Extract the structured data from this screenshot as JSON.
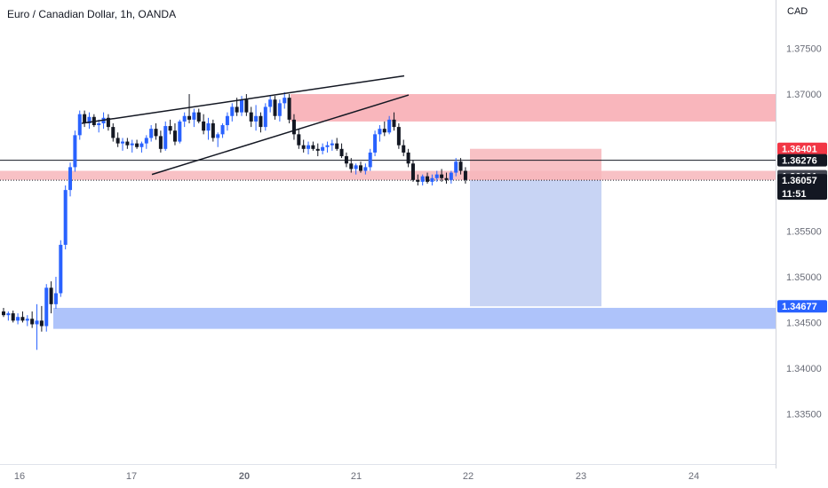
{
  "header": {
    "symbol_title": "Euro / Canadian Dollar, 1h, OANDA",
    "currency": "CAD"
  },
  "price_axis": {
    "ticks": [
      "1.37500",
      "1.37000",
      "1.35500",
      "1.35000",
      "1.34500",
      "1.34000",
      "1.33500"
    ]
  },
  "time_axis": {
    "labels": [
      {
        "text": "16",
        "bold": false
      },
      {
        "text": "17",
        "bold": false
      },
      {
        "text": "20",
        "bold": true
      },
      {
        "text": "21",
        "bold": false
      },
      {
        "text": "22",
        "bold": false
      },
      {
        "text": "23",
        "bold": false
      },
      {
        "text": "24",
        "bold": false
      }
    ]
  },
  "price_tags": {
    "stop": {
      "value": "1.36401",
      "color": "#f23645"
    },
    "entry": {
      "value": "1.36276",
      "color": "#131722"
    },
    "zone": {
      "value": "1.36101",
      "color": "#434651"
    },
    "last": {
      "value": "1.36057",
      "color": "#131722",
      "countdown": "11:51"
    },
    "target": {
      "value": "1.34677",
      "color": "#2962ff"
    }
  },
  "colors": {
    "bull": "#2962ff",
    "bear": "#131722",
    "supply_zone": "#f7a4ab",
    "demand_zone": "#a5bcf9",
    "stop_region": "#f7b6bb",
    "target_region": "#c5d2f3"
  },
  "chart_data": {
    "type": "candlestick",
    "instrument": "EUR/CAD",
    "timeframe": "1h",
    "candles_ohlc": [
      [
        1.3462,
        1.3466,
        1.3456,
        1.3458
      ],
      [
        1.3458,
        1.3462,
        1.3452,
        1.346
      ],
      [
        1.346,
        1.3463,
        1.345,
        1.3452
      ],
      [
        1.3452,
        1.346,
        1.3448,
        1.3456
      ],
      [
        1.3456,
        1.3462,
        1.345,
        1.3452
      ],
      [
        1.3452,
        1.3458,
        1.3446,
        1.3454
      ],
      [
        1.3454,
        1.3462,
        1.3444,
        1.3448
      ],
      [
        1.3448,
        1.347,
        1.342,
        1.3452
      ],
      [
        1.3452,
        1.3468,
        1.344,
        1.3446
      ],
      [
        1.3446,
        1.3492,
        1.344,
        1.3488
      ],
      [
        1.3488,
        1.3495,
        1.346,
        1.347
      ],
      [
        1.347,
        1.35,
        1.3465,
        1.3482
      ],
      [
        1.3482,
        1.354,
        1.3478,
        1.3535
      ],
      [
        1.3535,
        1.36,
        1.353,
        1.3595
      ],
      [
        1.3595,
        1.3625,
        1.3588,
        1.362
      ],
      [
        1.362,
        1.366,
        1.3615,
        1.3655
      ],
      [
        1.3655,
        1.3682,
        1.365,
        1.3678
      ],
      [
        1.3678,
        1.3682,
        1.3664,
        1.3668
      ],
      [
        1.3668,
        1.368,
        1.3662,
        1.3675
      ],
      [
        1.3675,
        1.3678,
        1.3664,
        1.3666
      ],
      [
        1.3666,
        1.3672,
        1.3658,
        1.3668
      ],
      [
        1.3668,
        1.368,
        1.3662,
        1.3674
      ],
      [
        1.3674,
        1.3678,
        1.366,
        1.3664
      ],
      [
        1.3664,
        1.3668,
        1.3648,
        1.3652
      ],
      [
        1.3652,
        1.3658,
        1.3642,
        1.3646
      ],
      [
        1.3646,
        1.3652,
        1.3638,
        1.3648
      ],
      [
        1.3648,
        1.3652,
        1.364,
        1.3644
      ],
      [
        1.3644,
        1.365,
        1.3636,
        1.3646
      ],
      [
        1.3646,
        1.365,
        1.364,
        1.3642
      ],
      [
        1.3642,
        1.3648,
        1.3636,
        1.3646
      ],
      [
        1.3646,
        1.3655,
        1.364,
        1.3652
      ],
      [
        1.3652,
        1.3666,
        1.3648,
        1.3662
      ],
      [
        1.3662,
        1.3668,
        1.365,
        1.3654
      ],
      [
        1.3654,
        1.366,
        1.3636,
        1.364
      ],
      [
        1.364,
        1.367,
        1.3638,
        1.3665
      ],
      [
        1.3665,
        1.3672,
        1.3656,
        1.366
      ],
      [
        1.366,
        1.3668,
        1.3644,
        1.3648
      ],
      [
        1.3648,
        1.3672,
        1.3646,
        1.367
      ],
      [
        1.367,
        1.368,
        1.3664,
        1.3676
      ],
      [
        1.3676,
        1.37,
        1.3668,
        1.3672
      ],
      [
        1.3672,
        1.3684,
        1.3664,
        1.368
      ],
      [
        1.368,
        1.3684,
        1.3668,
        1.367
      ],
      [
        1.367,
        1.3678,
        1.3656,
        1.366
      ],
      [
        1.366,
        1.3674,
        1.365,
        1.3668
      ],
      [
        1.3668,
        1.3672,
        1.3648,
        1.3652
      ],
      [
        1.3652,
        1.3658,
        1.3642,
        1.3656
      ],
      [
        1.3656,
        1.3668,
        1.3652,
        1.3666
      ],
      [
        1.3666,
        1.368,
        1.366,
        1.3676
      ],
      [
        1.3676,
        1.369,
        1.367,
        1.3686
      ],
      [
        1.3686,
        1.3696,
        1.3676,
        1.368
      ],
      [
        1.368,
        1.3698,
        1.3676,
        1.3694
      ],
      [
        1.3694,
        1.37,
        1.3676,
        1.368
      ],
      [
        1.368,
        1.3686,
        1.3664,
        1.367
      ],
      [
        1.367,
        1.3688,
        1.366,
        1.3676
      ],
      [
        1.3676,
        1.368,
        1.3658,
        1.3664
      ],
      [
        1.3664,
        1.369,
        1.366,
        1.3686
      ],
      [
        1.3686,
        1.3698,
        1.368,
        1.3694
      ],
      [
        1.3694,
        1.3698,
        1.3672,
        1.3676
      ],
      [
        1.3676,
        1.3694,
        1.367,
        1.369
      ],
      [
        1.369,
        1.3702,
        1.3684,
        1.3696
      ],
      [
        1.3696,
        1.37,
        1.3668,
        1.3672
      ],
      [
        1.3672,
        1.3678,
        1.365,
        1.3656
      ],
      [
        1.3656,
        1.3662,
        1.364,
        1.3644
      ],
      [
        1.3644,
        1.365,
        1.3636,
        1.364
      ],
      [
        1.364,
        1.3648,
        1.3634,
        1.3644
      ],
      [
        1.3644,
        1.3648,
        1.3638,
        1.364
      ],
      [
        1.364,
        1.3646,
        1.3632,
        1.3638
      ],
      [
        1.3638,
        1.3646,
        1.3634,
        1.3642
      ],
      [
        1.3642,
        1.3648,
        1.3636,
        1.3644
      ],
      [
        1.3644,
        1.365,
        1.3638,
        1.3646
      ],
      [
        1.3646,
        1.3652,
        1.3638,
        1.364
      ],
      [
        1.364,
        1.3646,
        1.363,
        1.3632
      ],
      [
        1.3632,
        1.3636,
        1.362,
        1.3624
      ],
      [
        1.3624,
        1.363,
        1.3614,
        1.3618
      ],
      [
        1.3618,
        1.3624,
        1.3612,
        1.3622
      ],
      [
        1.3622,
        1.3626,
        1.3614,
        1.3616
      ],
      [
        1.3616,
        1.3624,
        1.3612,
        1.362
      ],
      [
        1.362,
        1.364,
        1.3616,
        1.3636
      ],
      [
        1.3636,
        1.366,
        1.3632,
        1.3656
      ],
      [
        1.3656,
        1.3666,
        1.3648,
        1.3662
      ],
      [
        1.3662,
        1.367,
        1.3654,
        1.3658
      ],
      [
        1.3658,
        1.3676,
        1.3656,
        1.3672
      ],
      [
        1.3672,
        1.368,
        1.366,
        1.3664
      ],
      [
        1.3664,
        1.3668,
        1.364,
        1.3644
      ],
      [
        1.3644,
        1.365,
        1.3632,
        1.3636
      ],
      [
        1.3636,
        1.364,
        1.362,
        1.3624
      ],
      [
        1.3624,
        1.3628,
        1.3604,
        1.3606
      ],
      [
        1.3606,
        1.3612,
        1.36,
        1.3604
      ],
      [
        1.3604,
        1.3612,
        1.36,
        1.361
      ],
      [
        1.361,
        1.3614,
        1.3602,
        1.3604
      ],
      [
        1.3604,
        1.3612,
        1.36,
        1.3608
      ],
      [
        1.3608,
        1.3616,
        1.3604,
        1.3612
      ],
      [
        1.3612,
        1.3618,
        1.3604,
        1.3608
      ],
      [
        1.3608,
        1.3614,
        1.3602,
        1.3606
      ],
      [
        1.3606,
        1.3616,
        1.3602,
        1.3614
      ],
      [
        1.3614,
        1.363,
        1.361,
        1.3626
      ],
      [
        1.3626,
        1.363,
        1.3612,
        1.3616
      ],
      [
        1.3616,
        1.362,
        1.3602,
        1.3606
      ]
    ],
    "annotations": {
      "rising_wedge_upper": [
        1.3668,
        1.372
      ],
      "rising_wedge_lower": [
        1.3612,
        1.3699
      ],
      "supply_zone": [
        1.367,
        1.37
      ],
      "resistance_zone": [
        1.3606,
        1.3616
      ],
      "demand_zone": [
        1.3443,
        1.3466
      ],
      "short_position": {
        "entry": 1.36276,
        "stop": 1.36401,
        "target": 1.34677
      },
      "horizontal_line": 1.36276,
      "last_price_line": 1.36057
    },
    "ylim": [
      1.3295,
      1.3803
    ]
  }
}
